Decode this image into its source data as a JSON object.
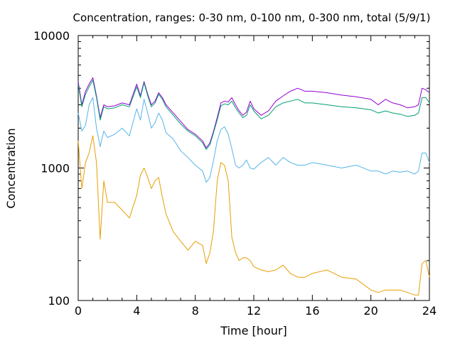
{
  "chart_data": {
    "type": "line",
    "title": "Concentration, ranges: 0-30 nm, 0-100 nm, 0-300 nm, total (5/9/1)",
    "xlabel": "Time [hour]",
    "ylabel": "Concentration",
    "xlim": [
      0,
      24
    ],
    "ylim": [
      100,
      10000
    ],
    "yscale": "log",
    "grid": false,
    "x_ticks": [
      {
        "value": 0,
        "label": "0"
      },
      {
        "value": 4,
        "label": "4"
      },
      {
        "value": 8,
        "label": "8"
      },
      {
        "value": 12,
        "label": "12"
      },
      {
        "value": 16,
        "label": "16"
      },
      {
        "value": 20,
        "label": "20"
      },
      {
        "value": 24,
        "label": "24"
      }
    ],
    "y_ticks": [
      {
        "value": 100,
        "label": "100"
      },
      {
        "value": 1000,
        "label": "1000"
      },
      {
        "value": 10000,
        "label": "10000"
      }
    ],
    "x": [
      0,
      0.25,
      0.5,
      0.75,
      1,
      1.25,
      1.5,
      1.75,
      2,
      2.5,
      3,
      3.5,
      4,
      4.25,
      4.5,
      4.75,
      5,
      5.25,
      5.5,
      5.75,
      6,
      6.5,
      7,
      7.5,
      8,
      8.5,
      8.75,
      9,
      9.25,
      9.5,
      9.75,
      10,
      10.25,
      10.5,
      10.75,
      11,
      11.25,
      11.5,
      11.75,
      12,
      12.5,
      13,
      13.5,
      14,
      14.5,
      15,
      15.5,
      16,
      17,
      18,
      19,
      20,
      20.5,
      21,
      21.5,
      22,
      22.5,
      23,
      23.25,
      23.5,
      23.75,
      24
    ],
    "series": [
      {
        "color": "#9400d3",
        "values": [
          4500,
          3000,
          3800,
          4300,
          4800,
          3500,
          2400,
          3000,
          2900,
          2950,
          3100,
          3000,
          4300,
          3500,
          4500,
          3600,
          3000,
          3200,
          3700,
          3400,
          3000,
          2600,
          2250,
          1950,
          1800,
          1600,
          1420,
          1550,
          1900,
          2400,
          3100,
          3200,
          3150,
          3400,
          3000,
          2700,
          2500,
          2650,
          3200,
          2800,
          2500,
          2700,
          3200,
          3500,
          3800,
          4000,
          3800,
          3800,
          3700,
          3550,
          3450,
          3300,
          3000,
          3300,
          3100,
          3000,
          2850,
          2900,
          3000,
          4000,
          3900,
          3700
        ]
      },
      {
        "color": "#009e73",
        "values": [
          4300,
          2900,
          3600,
          4100,
          4600,
          3400,
          2300,
          2900,
          2800,
          2850,
          3000,
          2900,
          4100,
          3400,
          4400,
          3500,
          2900,
          3100,
          3600,
          3300,
          2900,
          2500,
          2150,
          1900,
          1750,
          1550,
          1380,
          1500,
          1850,
          2300,
          2950,
          3050,
          3000,
          3200,
          2850,
          2600,
          2400,
          2500,
          3000,
          2700,
          2350,
          2500,
          2900,
          3100,
          3200,
          3300,
          3100,
          3100,
          3000,
          2900,
          2850,
          2750,
          2600,
          2700,
          2600,
          2550,
          2450,
          2500,
          2600,
          3400,
          3400,
          3100
        ]
      },
      {
        "color": "#56b4e9",
        "values": [
          2600,
          1900,
          2100,
          3000,
          3400,
          2000,
          1450,
          1900,
          1700,
          1800,
          2000,
          1750,
          2800,
          2300,
          3300,
          2600,
          2000,
          2200,
          2600,
          2300,
          1850,
          1650,
          1350,
          1200,
          1050,
          950,
          780,
          850,
          1150,
          1600,
          1950,
          2050,
          1800,
          1400,
          1050,
          1000,
          1050,
          1150,
          1000,
          980,
          1100,
          1200,
          1050,
          1200,
          1100,
          1050,
          1050,
          1100,
          1050,
          1000,
          1050,
          950,
          950,
          900,
          950,
          930,
          950,
          900,
          950,
          1300,
          1300,
          1100
        ]
      },
      {
        "color": "#e69f00",
        "values": [
          1600,
          700,
          1100,
          1300,
          1750,
          1100,
          290,
          800,
          550,
          550,
          480,
          420,
          620,
          880,
          1000,
          850,
          700,
          800,
          850,
          600,
          450,
          330,
          280,
          240,
          280,
          260,
          190,
          230,
          340,
          800,
          1100,
          1050,
          800,
          300,
          230,
          200,
          210,
          210,
          200,
          180,
          170,
          165,
          170,
          185,
          160,
          150,
          150,
          160,
          170,
          150,
          145,
          120,
          115,
          120,
          120,
          120,
          115,
          110,
          110,
          190,
          200,
          150
        ]
      }
    ]
  }
}
